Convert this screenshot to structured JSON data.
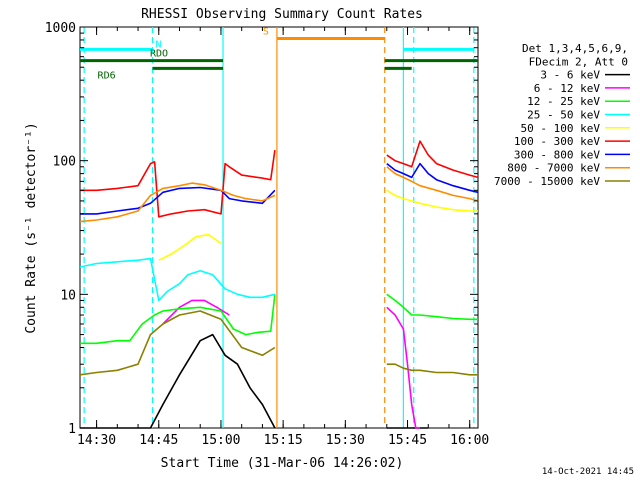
{
  "chart_data": {
    "type": "line",
    "title": "RHESSI Observing Summary Count Rates",
    "xlabel": "Start Time (31-Mar-06 14:26:02)",
    "ylabel": "Count Rate (s⁻¹ detector⁻¹)",
    "xlim": [
      26,
      122
    ],
    "ylim": [
      1,
      1000
    ],
    "y_scale": "log",
    "x_ticks": [
      {
        "value": 30,
        "label": "14:30"
      },
      {
        "value": 45,
        "label": "14:45"
      },
      {
        "value": 60,
        "label": "15:00"
      },
      {
        "value": 75,
        "label": "15:15"
      },
      {
        "value": 90,
        "label": "15:30"
      },
      {
        "value": 105,
        "label": "15:45"
      },
      {
        "value": 120,
        "label": "16:00"
      }
    ],
    "y_ticks": [
      {
        "value": 1,
        "label": "1"
      },
      {
        "value": 10,
        "label": "10"
      },
      {
        "value": 100,
        "label": "100"
      },
      {
        "value": 1000,
        "label": "1000"
      }
    ],
    "legend_header": [
      "Det 1,3,4,5,6,9,",
      "FDecim 2, Att 0"
    ],
    "legend_position": "right",
    "series": [
      {
        "name": "3 - 6 keV",
        "color": "#000000",
        "segments": [
          {
            "x": [
              26,
              30,
              35,
              40,
              43,
              46,
              50,
              55,
              58,
              61,
              64,
              67,
              70,
              73
            ],
            "y": [
              1.0,
              1.0,
              1.0,
              1.0,
              1.0,
              1.5,
              2.5,
              4.5,
              5.0,
              3.5,
              3.0,
              2.0,
              1.5,
              1.0
            ]
          },
          {
            "x": [
              100,
              102,
              104,
              106,
              108,
              110
            ],
            "y": [
              1.0,
              1.0,
              1.0,
              1.0,
              1.0,
              1.0
            ]
          }
        ]
      },
      {
        "name": "6 - 12 keV",
        "color": "#ff00ff",
        "segments": [
          {
            "x": [
              46,
              50,
              53,
              56,
              59,
              62
            ],
            "y": [
              6.0,
              8.0,
              9.0,
              9.0,
              8.0,
              7.0
            ]
          },
          {
            "x": [
              100,
              102,
              104,
              105,
              106,
              107,
              108
            ],
            "y": [
              8.0,
              7.0,
              5.5,
              3.0,
              1.5,
              1.0,
              1.0
            ]
          }
        ]
      },
      {
        "name": "12 - 25 keV",
        "color": "#00ff00",
        "segments": [
          {
            "x": [
              26,
              30,
              35,
              38,
              41,
              44,
              46,
              50,
              55,
              60,
              63,
              66,
              69,
              72,
              73
            ],
            "y": [
              4.3,
              4.3,
              4.5,
              4.5,
              6.0,
              7.0,
              7.5,
              7.8,
              8.0,
              7.5,
              5.5,
              5.0,
              5.2,
              5.3,
              10.0
            ]
          },
          {
            "x": [
              100,
              102,
              104,
              105,
              106,
              108,
              112,
              116,
              120,
              122
            ],
            "y": [
              10.0,
              9.0,
              8.0,
              7.5,
              7.0,
              7.0,
              6.8,
              6.6,
              6.5,
              6.5
            ]
          }
        ]
      },
      {
        "name": "25 - 50 keV",
        "color": "#00ffff",
        "segments": [
          {
            "x": [
              26,
              30,
              35,
              40,
              43,
              45,
              47,
              50,
              52,
              55,
              58,
              61,
              64,
              67,
              70,
              73
            ],
            "y": [
              16.0,
              17.0,
              17.5,
              18.0,
              18.5,
              9.0,
              10.5,
              12.0,
              14.0,
              15.0,
              14.0,
              11.0,
              10.0,
              9.5,
              9.5,
              10.0
            ]
          }
        ]
      },
      {
        "name": "50 - 100 keV",
        "color": "#ffff00",
        "segments": [
          {
            "x": [
              45,
              48,
              51,
              54,
              57,
              60
            ],
            "y": [
              18.0,
              20.0,
              23.0,
              27.0,
              28.0,
              24.0
            ]
          },
          {
            "x": [
              100,
              102,
              104,
              106,
              108,
              112,
              116,
              120,
              122
            ],
            "y": [
              60.0,
              55.0,
              52.0,
              50.0,
              48.0,
              45.0,
              43.0,
              42.0,
              42.0
            ]
          }
        ]
      },
      {
        "name": "100 - 300 keV",
        "color": "#ff0000",
        "segments": [
          {
            "x": [
              26,
              30,
              35,
              40,
              43,
              44,
              45,
              48,
              52,
              56,
              60,
              61,
              62,
              65,
              70,
              72,
              73
            ],
            "y": [
              60.0,
              60.0,
              62.0,
              65.0,
              95.0,
              98.0,
              38.0,
              40.0,
              42.0,
              43.0,
              40.0,
              95.0,
              90.0,
              78.0,
              74.0,
              72.0,
              120.0
            ]
          },
          {
            "x": [
              100,
              102,
              104,
              106,
              108,
              110,
              112,
              116,
              120,
              122
            ],
            "y": [
              110.0,
              100.0,
              95.0,
              90.0,
              140.0,
              110.0,
              95.0,
              85.0,
              78.0,
              75.0
            ]
          }
        ]
      },
      {
        "name": "300 - 800 keV",
        "color": "#0000ff",
        "segments": [
          {
            "x": [
              26,
              30,
              35,
              40,
              43,
              46,
              50,
              55,
              60,
              62,
              65,
              70,
              73
            ],
            "y": [
              40.0,
              40.0,
              42.0,
              44.0,
              48.0,
              58.0,
              62.0,
              63.0,
              60.0,
              52.0,
              50.0,
              48.0,
              60.0
            ]
          },
          {
            "x": [
              100,
              102,
              104,
              106,
              108,
              110,
              112,
              116,
              120,
              122
            ],
            "y": [
              95.0,
              85.0,
              80.0,
              75.0,
              95.0,
              80.0,
              72.0,
              65.0,
              60.0,
              58.0
            ]
          }
        ]
      },
      {
        "name": "800 - 7000 keV",
        "color": "#ff8c00",
        "segments": [
          {
            "x": [
              26,
              30,
              35,
              40,
              43,
              46,
              50,
              53,
              56,
              60,
              63,
              66,
              70,
              73
            ],
            "y": [
              35.0,
              36.0,
              38.0,
              42.0,
              55.0,
              62.0,
              65.0,
              68.0,
              66.0,
              60.0,
              55.0,
              52.0,
              50.0,
              55.0
            ]
          },
          {
            "x": [
              100,
              102,
              104,
              106,
              108,
              112,
              116,
              120,
              122
            ],
            "y": [
              90.0,
              80.0,
              75.0,
              70.0,
              65.0,
              60.0,
              55.0,
              52.0,
              50.0
            ]
          }
        ]
      },
      {
        "name": "7000 - 15000 keV",
        "color": "#8b8000",
        "segments": [
          {
            "x": [
              26,
              30,
              35,
              40,
              43,
              46,
              50,
              55,
              60,
              65,
              70,
              73
            ],
            "y": [
              2.5,
              2.6,
              2.7,
              3.0,
              5.0,
              6.0,
              7.0,
              7.5,
              6.5,
              4.0,
              3.5,
              4.0
            ]
          },
          {
            "x": [
              100,
              102,
              104,
              106,
              108,
              112,
              116,
              120,
              122
            ],
            "y": [
              3.0,
              3.0,
              2.8,
              2.7,
              2.7,
              2.6,
              2.6,
              2.5,
              2.5
            ]
          }
        ]
      }
    ],
    "vertical_markers": [
      {
        "x": 27,
        "color": "#00ffff",
        "style": "dashed"
      },
      {
        "x": 43.5,
        "color": "#00ffff",
        "style": "dashed"
      },
      {
        "x": 60.5,
        "color": "#00ffff",
        "style": "solid"
      },
      {
        "x": 73.5,
        "color": "#ff8c00",
        "style": "solid"
      },
      {
        "x": 99.5,
        "color": "#ff8c00",
        "style": "dashed"
      },
      {
        "x": 104,
        "color": "#00ffff",
        "style": "solid"
      },
      {
        "x": 106.5,
        "color": "#00ffff",
        "style": "dashed"
      },
      {
        "x": 121,
        "color": "#00ffff",
        "style": "dashed"
      }
    ],
    "flag_bars": [
      {
        "label": "N",
        "color": "#00ffff",
        "y": 680,
        "segments": [
          [
            26,
            43.5
          ],
          [
            104,
            121
          ]
        ]
      },
      {
        "label": "RDO",
        "color": "#006400",
        "y": 560,
        "segments": [
          [
            26,
            60.5
          ],
          [
            99.5,
            122
          ]
        ]
      },
      {
        "label": "RD6",
        "color": "#006400",
        "y": 490,
        "segments": [
          [
            43.5,
            60.5
          ],
          [
            99.5,
            106
          ]
        ]
      },
      {
        "label": "S",
        "color": "#ff8c00",
        "y": 820,
        "segments": [
          [
            73.5,
            99.5
          ]
        ]
      }
    ],
    "footer_timestamp": "14-Oct-2021 14:45"
  }
}
